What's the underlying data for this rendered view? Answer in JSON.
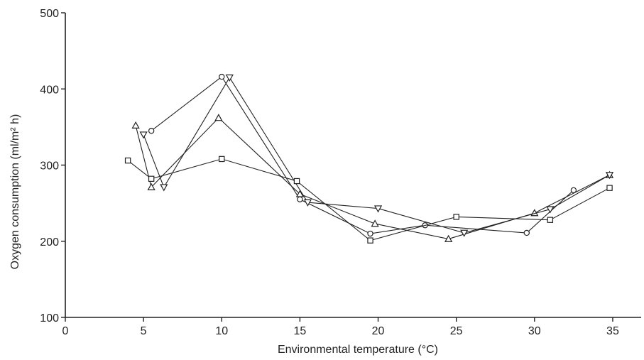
{
  "chart_data": {
    "type": "line",
    "title": "",
    "xlabel": "Environmental temperature (°C)",
    "ylabel": "Oxygen consumption (ml/m² h)",
    "xlim": [
      0,
      37
    ],
    "ylim": [
      100,
      500
    ],
    "xticks": [
      0,
      5,
      10,
      15,
      20,
      25,
      30,
      35
    ],
    "yticks": [
      100,
      200,
      300,
      400,
      500
    ],
    "grid": false,
    "legend": "none",
    "series": [
      {
        "marker": "circle",
        "points": [
          [
            5.5,
            345
          ],
          [
            10,
            416
          ],
          [
            15,
            255
          ],
          [
            19.5,
            210
          ],
          [
            23,
            221
          ],
          [
            29.5,
            211
          ],
          [
            32.5,
            267
          ]
        ]
      },
      {
        "marker": "triangle-up",
        "points": [
          [
            4.5,
            352
          ],
          [
            5.5,
            271
          ],
          [
            9.8,
            362
          ],
          [
            15,
            262
          ],
          [
            19.8,
            223
          ],
          [
            24.5,
            203
          ],
          [
            30,
            237
          ],
          [
            34.8,
            287
          ]
        ]
      },
      {
        "marker": "triangle-down",
        "points": [
          [
            5,
            340
          ],
          [
            6.3,
            271
          ],
          [
            10.5,
            415
          ],
          [
            15.5,
            251
          ],
          [
            20,
            243
          ],
          [
            25.5,
            211
          ],
          [
            31,
            242
          ],
          [
            34.8,
            287
          ]
        ]
      },
      {
        "marker": "square",
        "points": [
          [
            4,
            306
          ],
          [
            5.5,
            282
          ],
          [
            10,
            308
          ],
          [
            14.8,
            279
          ],
          [
            19.5,
            201
          ],
          [
            25,
            232
          ],
          [
            31,
            228
          ],
          [
            34.8,
            270
          ]
        ]
      }
    ]
  }
}
